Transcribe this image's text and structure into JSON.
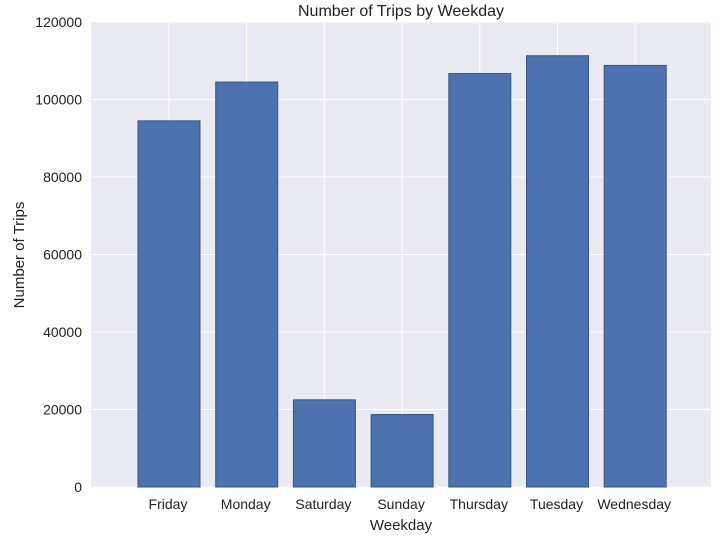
{
  "chart_data": {
    "type": "bar",
    "title": "Number of Trips by Weekday",
    "xlabel": "Weekday",
    "ylabel": "Number of Trips",
    "categories": [
      "Friday",
      "Monday",
      "Saturday",
      "Sunday",
      "Thursday",
      "Tuesday",
      "Wednesday"
    ],
    "values": [
      94500,
      104500,
      22500,
      18700,
      106700,
      111300,
      108800
    ],
    "ylim": [
      0,
      120000
    ],
    "yticks": [
      0,
      20000,
      40000,
      60000,
      80000,
      100000,
      120000
    ],
    "grid": true,
    "colors": {
      "bar": "#4c72b0",
      "bar_edge": "#3a5580",
      "plot_background": "#eaeaf2",
      "grid": "#ffffff"
    }
  }
}
